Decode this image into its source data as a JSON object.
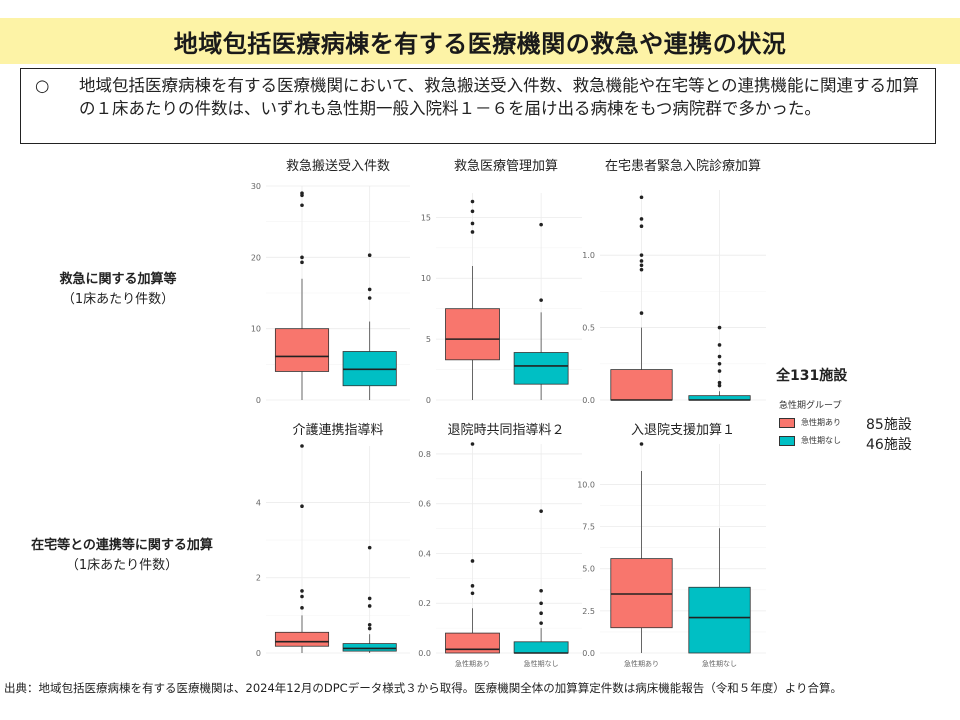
{
  "header": {
    "title": "地域包括医療病棟を有する医療機関の救急や連携の状況"
  },
  "summary": {
    "bullet": "○",
    "text": "地域包括医療病棟を有する医療機関において、救急搬送受入件数、救急機能や在宅等との連携機能に関連する加算の１床あたりの件数は、いずれも急性期一般入院料１－６を届け出る病棟をもつ病院群で多かった。"
  },
  "row_labels": {
    "row1_main": "救急に関する加算等",
    "row1_sub": "（1床あたり件数）",
    "row2_main": "在宅等との連携等に関する加算",
    "row2_sub": "（1床あたり件数）"
  },
  "legend": {
    "total": "全131施設",
    "title": "急性期グループ",
    "items": [
      {
        "label": "急性期あり",
        "color": "#f8766d",
        "count": "85施設"
      },
      {
        "label": "急性期なし",
        "color": "#00bfc4",
        "count": "46施設"
      }
    ]
  },
  "footer": "出典：地域包括医療病棟を有する医療機関は、2024年12月のDPCデータ様式３から取得。医療機関全体の加算算定件数は病床機能報告（令和５年度）より合算。",
  "chart_data": [
    {
      "type": "boxplot",
      "title": "救急搬送受入件数",
      "categories": [
        "急性期あり",
        "急性期なし"
      ],
      "ylim": [
        0,
        30
      ],
      "yticks": [
        0,
        10,
        20,
        30
      ],
      "yticklabels": [
        "0",
        "10",
        "20",
        "30"
      ],
      "show_xticks": false,
      "boxes": [
        {
          "group": "急性期あり",
          "color": "#f8766d",
          "whisker_low": 0,
          "q1": 4,
          "median": 6.1,
          "q3": 10,
          "whisker_high": 17,
          "outliers": [
            19.3,
            20,
            27.3,
            28.7,
            29
          ]
        },
        {
          "group": "急性期なし",
          "color": "#00bfc4",
          "whisker_low": 0,
          "q1": 2,
          "median": 4.3,
          "q3": 6.8,
          "whisker_high": 11,
          "outliers": [
            14.3,
            15.5,
            20.3
          ]
        }
      ]
    },
    {
      "type": "boxplot",
      "title": "救急医療管理加算",
      "categories": [
        "急性期あり",
        "急性期なし"
      ],
      "ylim": [
        0,
        17
      ],
      "yticks": [
        0,
        5,
        10,
        15
      ],
      "yticklabels": [
        "0",
        "5",
        "10",
        "15"
      ],
      "show_xticks": false,
      "boxes": [
        {
          "group": "急性期あり",
          "color": "#f8766d",
          "whisker_low": 0,
          "q1": 3.3,
          "median": 5,
          "q3": 7.5,
          "whisker_high": 11,
          "outliers": [
            13.8,
            14.5,
            15.5,
            16.3
          ]
        },
        {
          "group": "急性期なし",
          "color": "#00bfc4",
          "whisker_low": 0,
          "q1": 1.3,
          "median": 2.8,
          "q3": 3.9,
          "whisker_high": 7.2,
          "outliers": [
            8.2,
            14.4
          ]
        }
      ]
    },
    {
      "type": "boxplot",
      "title": "在宅患者緊急入院診療加算",
      "categories": [
        "急性期あり",
        "急性期なし"
      ],
      "ylim": [
        0,
        1.45
      ],
      "yticks": [
        0,
        0.5,
        1.0
      ],
      "yticklabels": [
        "0.0",
        "0.5",
        "1.0"
      ],
      "show_xticks": false,
      "boxes": [
        {
          "group": "急性期あり",
          "color": "#f8766d",
          "whisker_low": 0,
          "q1": 0,
          "median": 0,
          "q3": 0.21,
          "whisker_high": 0.5,
          "outliers": [
            0.6,
            0.9,
            0.93,
            0.96,
            1.0,
            1.2,
            1.25,
            1.4
          ]
        },
        {
          "group": "急性期なし",
          "color": "#00bfc4",
          "whisker_low": 0,
          "q1": 0,
          "median": 0,
          "q3": 0.03,
          "whisker_high": 0.06,
          "outliers": [
            0.1,
            0.12,
            0.2,
            0.25,
            0.3,
            0.38,
            0.5
          ]
        }
      ]
    },
    {
      "type": "boxplot",
      "title": "介護連携指導料",
      "categories": [
        "急性期あり",
        "急性期なし"
      ],
      "ylim": [
        0,
        5.5
      ],
      "yticks": [
        0,
        2,
        4
      ],
      "yticklabels": [
        "0",
        "2",
        "4"
      ],
      "show_xticks": false,
      "boxes": [
        {
          "group": "急性期あり",
          "color": "#f8766d",
          "whisker_low": 0,
          "q1": 0.18,
          "median": 0.3,
          "q3": 0.55,
          "whisker_high": 1.0,
          "outliers": [
            1.2,
            1.5,
            1.65,
            3.9,
            5.5
          ]
        },
        {
          "group": "急性期なし",
          "color": "#00bfc4",
          "whisker_low": 0,
          "q1": 0.05,
          "median": 0.12,
          "q3": 0.25,
          "whisker_high": 0.5,
          "outliers": [
            0.65,
            0.75,
            1.25,
            1.45,
            2.8
          ]
        }
      ]
    },
    {
      "type": "boxplot",
      "title": "退院時共同指導料２",
      "categories": [
        "急性期あり",
        "急性期なし"
      ],
      "ylim": [
        0,
        0.84
      ],
      "yticks": [
        0,
        0.2,
        0.4,
        0.6,
        0.8
      ],
      "yticklabels": [
        "0.0",
        "0.2",
        "0.4",
        "0.6",
        "0.8"
      ],
      "categories_display": [
        "急性期あり",
        "急性期なし"
      ],
      "show_xticks": true,
      "boxes": [
        {
          "group": "急性期あり",
          "color": "#f8766d",
          "whisker_low": 0,
          "q1": 0,
          "median": 0.015,
          "q3": 0.08,
          "whisker_high": 0.18,
          "outliers": [
            0.24,
            0.27,
            0.37,
            0.84
          ]
        },
        {
          "group": "急性期なし",
          "color": "#00bfc4",
          "whisker_low": 0,
          "q1": 0,
          "median": 0,
          "q3": 0.045,
          "whisker_high": 0.1,
          "outliers": [
            0.12,
            0.16,
            0.2,
            0.25,
            0.57
          ]
        }
      ]
    },
    {
      "type": "boxplot",
      "title": "入退院支援加算１",
      "categories": [
        "急性期あり",
        "急性期なし"
      ],
      "ylim": [
        0,
        12.4
      ],
      "yticks": [
        0,
        2.5,
        5,
        7.5,
        10
      ],
      "yticklabels": [
        "0.0",
        "2.5",
        "5.0",
        "7.5",
        "10.0"
      ],
      "categories_display": [
        "急性期あり",
        "急性期なし"
      ],
      "show_xticks": true,
      "boxes": [
        {
          "group": "急性期あり",
          "color": "#f8766d",
          "whisker_low": 0,
          "q1": 1.5,
          "median": 3.5,
          "q3": 5.6,
          "whisker_high": 10.8,
          "outliers": [
            12.4
          ]
        },
        {
          "group": "急性期なし",
          "color": "#00bfc4",
          "whisker_low": 0,
          "q1": 0,
          "median": 2.1,
          "q3": 3.9,
          "whisker_high": 7.4,
          "outliers": []
        }
      ]
    }
  ]
}
